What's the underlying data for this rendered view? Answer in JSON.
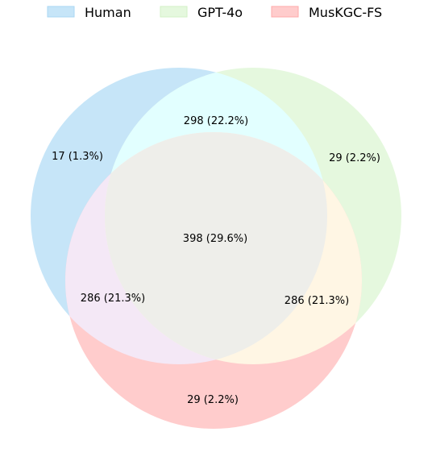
{
  "legend": [
    {
      "label": "Human",
      "color": "#c6e5f8",
      "border": "#a9d7f3"
    },
    {
      "label": "GPT-4o",
      "color": "#e5f8de",
      "border": "#d2f0c6"
    },
    {
      "label": "MusKGC-FS",
      "color": "#ffcccc",
      "border": "#ffaaaa"
    }
  ],
  "regions": {
    "human_only": "17 (1.3%)",
    "human_gpt": "298 (22.2%)",
    "gpt_only": "29 (2.2%)",
    "all_three": "398 (29.6%)",
    "human_mus": "286 (21.3%)",
    "gpt_mus": "286 (21.3%)",
    "mus_only": "29 (2.2%)"
  },
  "region_colors": {
    "human_only": "#c6e5f8",
    "gpt_only": "#e5f8de",
    "mus_only": "#ffcccc",
    "human_gpt": "#e2ffff",
    "human_mus": "#f4e8f6",
    "gpt_mus": "#fff6e4",
    "all_three": "#eeeeea"
  }
}
